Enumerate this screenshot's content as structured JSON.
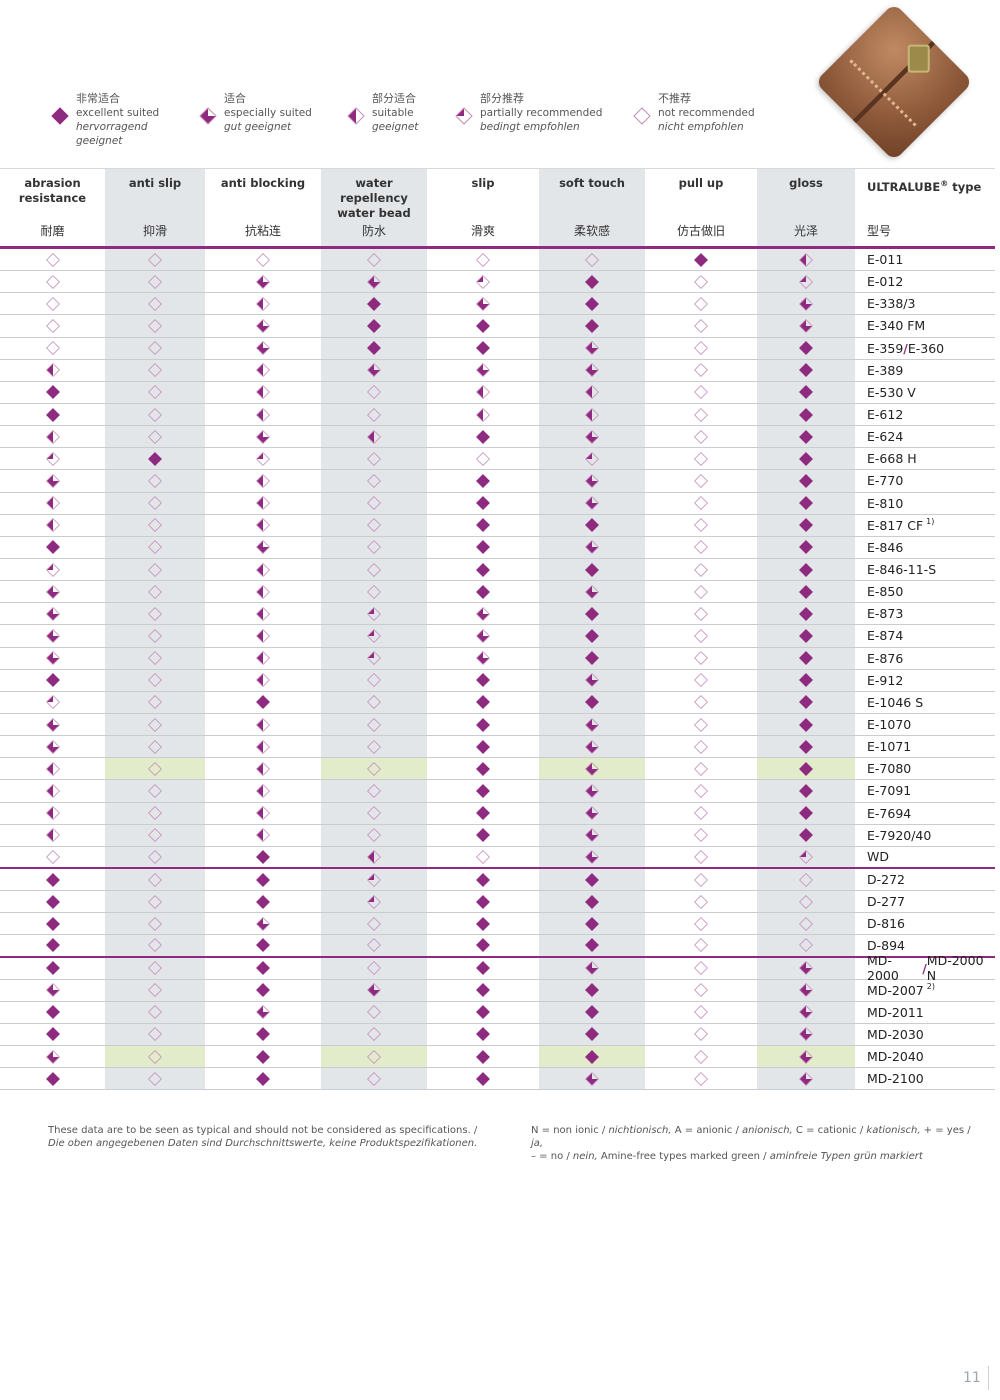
{
  "legend": [
    {
      "level": 4,
      "cn": "非常适合",
      "en": "excellent suited",
      "de": "hervorragend geeignet"
    },
    {
      "level": 3,
      "cn": "适合",
      "en": "especially suited",
      "de": "gut geeignet"
    },
    {
      "level": 2,
      "cn": "部分适合",
      "en": "suitable",
      "de": "geeignet"
    },
    {
      "level": 1,
      "cn": "部分推荐",
      "en": "partially recommended",
      "de": "bedingt empfohlen"
    },
    {
      "level": 0,
      "cn": "不推荐",
      "en": "not recommended",
      "de": "nicht empfohlen"
    }
  ],
  "colors": {
    "accent": "#8e2a7f",
    "shade": "#e3e6e9",
    "green": "#e2eccb"
  },
  "columns": [
    {
      "en": "abrasion resistance",
      "cn": "耐磨"
    },
    {
      "en": "anti slip",
      "cn": "抑滑"
    },
    {
      "en": "anti blocking",
      "cn": "抗粘连"
    },
    {
      "en": "water repellency water bead",
      "cn": "防水"
    },
    {
      "en": "slip",
      "cn": "滑爽"
    },
    {
      "en": "soft touch",
      "cn": "柔软感"
    },
    {
      "en": "pull up",
      "cn": "仿古做旧"
    },
    {
      "en": "gloss",
      "cn": "光泽"
    }
  ],
  "type_column": {
    "en": "ULTRALUBE",
    "reg": "®",
    "en_suffix": " type",
    "cn": "型号"
  },
  "rows": [
    {
      "type": "E-011",
      "r": [
        0,
        0,
        0,
        0,
        0,
        0,
        4,
        2
      ]
    },
    {
      "type": "E-012",
      "r": [
        0,
        0,
        3,
        3,
        1,
        4,
        0,
        1
      ]
    },
    {
      "type": "E-338/3",
      "r": [
        0,
        0,
        2,
        4,
        3,
        4,
        0,
        3
      ]
    },
    {
      "type": "E-340 FM",
      "r": [
        0,
        0,
        3,
        4,
        4,
        4,
        0,
        3
      ]
    },
    {
      "type": "E-359/E-360",
      "r": [
        0,
        0,
        3,
        4,
        4,
        3,
        0,
        4
      ]
    },
    {
      "type": "E-389",
      "r": [
        2,
        0,
        2,
        3,
        3,
        3,
        0,
        4
      ]
    },
    {
      "type": "E-530 V",
      "r": [
        4,
        0,
        2,
        0,
        2,
        2,
        0,
        4
      ]
    },
    {
      "type": "E-612",
      "r": [
        4,
        0,
        2,
        0,
        2,
        2,
        0,
        4
      ]
    },
    {
      "type": "E-624",
      "r": [
        2,
        0,
        3,
        2,
        4,
        3,
        0,
        4
      ]
    },
    {
      "type": "E-668 H",
      "r": [
        1,
        4,
        1,
        0,
        0,
        1,
        0,
        4
      ]
    },
    {
      "type": "E-770",
      "r": [
        3,
        0,
        2,
        0,
        4,
        3,
        0,
        4
      ]
    },
    {
      "type": "E-810",
      "r": [
        2,
        0,
        2,
        0,
        4,
        3,
        0,
        4
      ]
    },
    {
      "type": "E-817 CF",
      "note": "1)",
      "r": [
        2,
        0,
        2,
        0,
        4,
        4,
        0,
        4
      ]
    },
    {
      "type": "E-846",
      "r": [
        4,
        0,
        3,
        0,
        4,
        3,
        0,
        4
      ]
    },
    {
      "type": "E-846-11-S",
      "r": [
        1,
        0,
        2,
        0,
        4,
        4,
        0,
        4
      ]
    },
    {
      "type": "E-850",
      "r": [
        3,
        0,
        2,
        0,
        4,
        3,
        0,
        4
      ]
    },
    {
      "type": "E-873",
      "r": [
        3,
        0,
        2,
        1,
        3,
        4,
        0,
        4
      ]
    },
    {
      "type": "E-874",
      "r": [
        3,
        0,
        2,
        1,
        3,
        4,
        0,
        4
      ]
    },
    {
      "type": "E-876",
      "r": [
        3,
        0,
        2,
        1,
        3,
        4,
        0,
        4
      ]
    },
    {
      "type": "E-912",
      "r": [
        4,
        0,
        2,
        0,
        4,
        3,
        0,
        4
      ]
    },
    {
      "type": "E-1046 S",
      "r": [
        1,
        0,
        4,
        0,
        4,
        4,
        0,
        4
      ]
    },
    {
      "type": "E-1070",
      "r": [
        3,
        0,
        2,
        0,
        4,
        3,
        0,
        4
      ]
    },
    {
      "type": "E-1071",
      "r": [
        3,
        0,
        2,
        0,
        4,
        3,
        0,
        4
      ]
    },
    {
      "type": "E-7080",
      "green": true,
      "r": [
        2,
        0,
        2,
        0,
        4,
        3,
        0,
        4
      ]
    },
    {
      "type": "E-7091",
      "r": [
        2,
        0,
        2,
        0,
        4,
        3,
        0,
        4
      ]
    },
    {
      "type": "E-7694",
      "r": [
        2,
        0,
        2,
        0,
        4,
        3,
        0,
        4
      ]
    },
    {
      "type": "E-7920/40",
      "r": [
        2,
        0,
        2,
        0,
        4,
        3,
        0,
        4
      ]
    },
    {
      "type": "WD",
      "group_end": true,
      "r": [
        0,
        0,
        4,
        2,
        0,
        3,
        0,
        1
      ]
    },
    {
      "type": "D-272",
      "r": [
        4,
        0,
        4,
        1,
        4,
        4,
        0,
        0
      ]
    },
    {
      "type": "D-277",
      "r": [
        4,
        0,
        4,
        1,
        4,
        4,
        0,
        0
      ]
    },
    {
      "type": "D-816",
      "r": [
        4,
        0,
        3,
        0,
        4,
        4,
        0,
        0
      ]
    },
    {
      "type": "D-894",
      "group_end": true,
      "r": [
        4,
        0,
        4,
        0,
        4,
        4,
        0,
        0
      ]
    },
    {
      "type": "MD-2000/MD-2000 N",
      "r": [
        4,
        0,
        4,
        0,
        4,
        3,
        0,
        3
      ]
    },
    {
      "type": "MD-2007",
      "note": "2)",
      "r": [
        3,
        0,
        4,
        3,
        4,
        4,
        0,
        3
      ]
    },
    {
      "type": "MD-2011",
      "r": [
        4,
        0,
        3,
        0,
        4,
        4,
        0,
        3
      ]
    },
    {
      "type": "MD-2030",
      "r": [
        4,
        0,
        4,
        0,
        4,
        4,
        0,
        3
      ]
    },
    {
      "type": "MD-2040",
      "green": true,
      "r": [
        3,
        0,
        4,
        0,
        4,
        4,
        0,
        3
      ]
    },
    {
      "type": "MD-2100",
      "r": [
        4,
        0,
        4,
        0,
        4,
        3,
        0,
        3
      ]
    }
  ],
  "footer": {
    "left_en": "These data are to be seen as typical and should not be considered as specifications. /",
    "left_de": "Die oben angegebenen Daten sind Durchschnittswerte, keine Produktspezifikationen.",
    "right_line1": [
      {
        "t": "N = non ionic / ",
        "i": false
      },
      {
        "t": "nichtionisch,",
        "i": true
      },
      {
        "t": "  A = anionic / ",
        "i": false
      },
      {
        "t": "anionisch,",
        "i": true
      },
      {
        "t": " C = cationic / ",
        "i": false
      },
      {
        "t": "kationisch,",
        "i": true
      },
      {
        "t": " + = yes / ",
        "i": false
      },
      {
        "t": "ja,",
        "i": true
      }
    ],
    "right_line2": [
      {
        "t": "– = no / ",
        "i": false
      },
      {
        "t": "nein,",
        "i": true
      },
      {
        "t": "  Amine-free types marked green / ",
        "i": false
      },
      {
        "t": "aminfreie Typen grün markiert",
        "i": true
      }
    ]
  },
  "page_number": "11"
}
